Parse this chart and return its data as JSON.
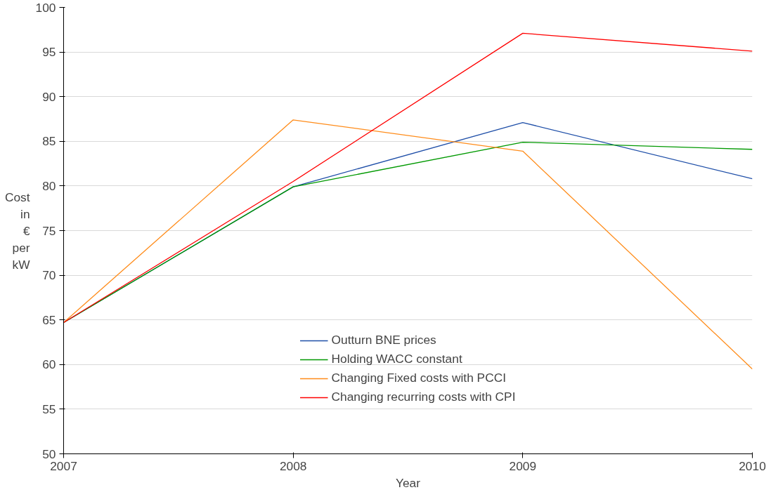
{
  "chart_data": {
    "type": "line",
    "xlabel": "Year",
    "ylabel": "Cost in € per kW",
    "x": [
      2007,
      2008,
      2009,
      2010
    ],
    "xlim": [
      2007,
      2010
    ],
    "xticks": [
      2007,
      2008,
      2009,
      2010
    ],
    "ylim": [
      50,
      100
    ],
    "yticks": [
      50,
      55,
      60,
      65,
      70,
      75,
      80,
      85,
      90,
      95,
      100
    ],
    "grid": "y",
    "legend": "bottom",
    "marker": "none",
    "series": [
      {
        "name": "Outturn BNE prices",
        "color": "#1f4fa8",
        "values": [
          64.7,
          79.9,
          87.1,
          80.8
        ]
      },
      {
        "name": "Holding WACC constant",
        "color": "#009900",
        "values": [
          64.7,
          79.9,
          84.9,
          84.1
        ]
      },
      {
        "name": "Changing Fixed costs with PCCI",
        "color": "#ff8c1a",
        "values": [
          64.7,
          87.4,
          83.9,
          59.5
        ]
      },
      {
        "name": "Changing recurring costs with CPI",
        "color": "#ff0000",
        "values": [
          64.7,
          80.5,
          97.1,
          95.1
        ]
      }
    ]
  }
}
